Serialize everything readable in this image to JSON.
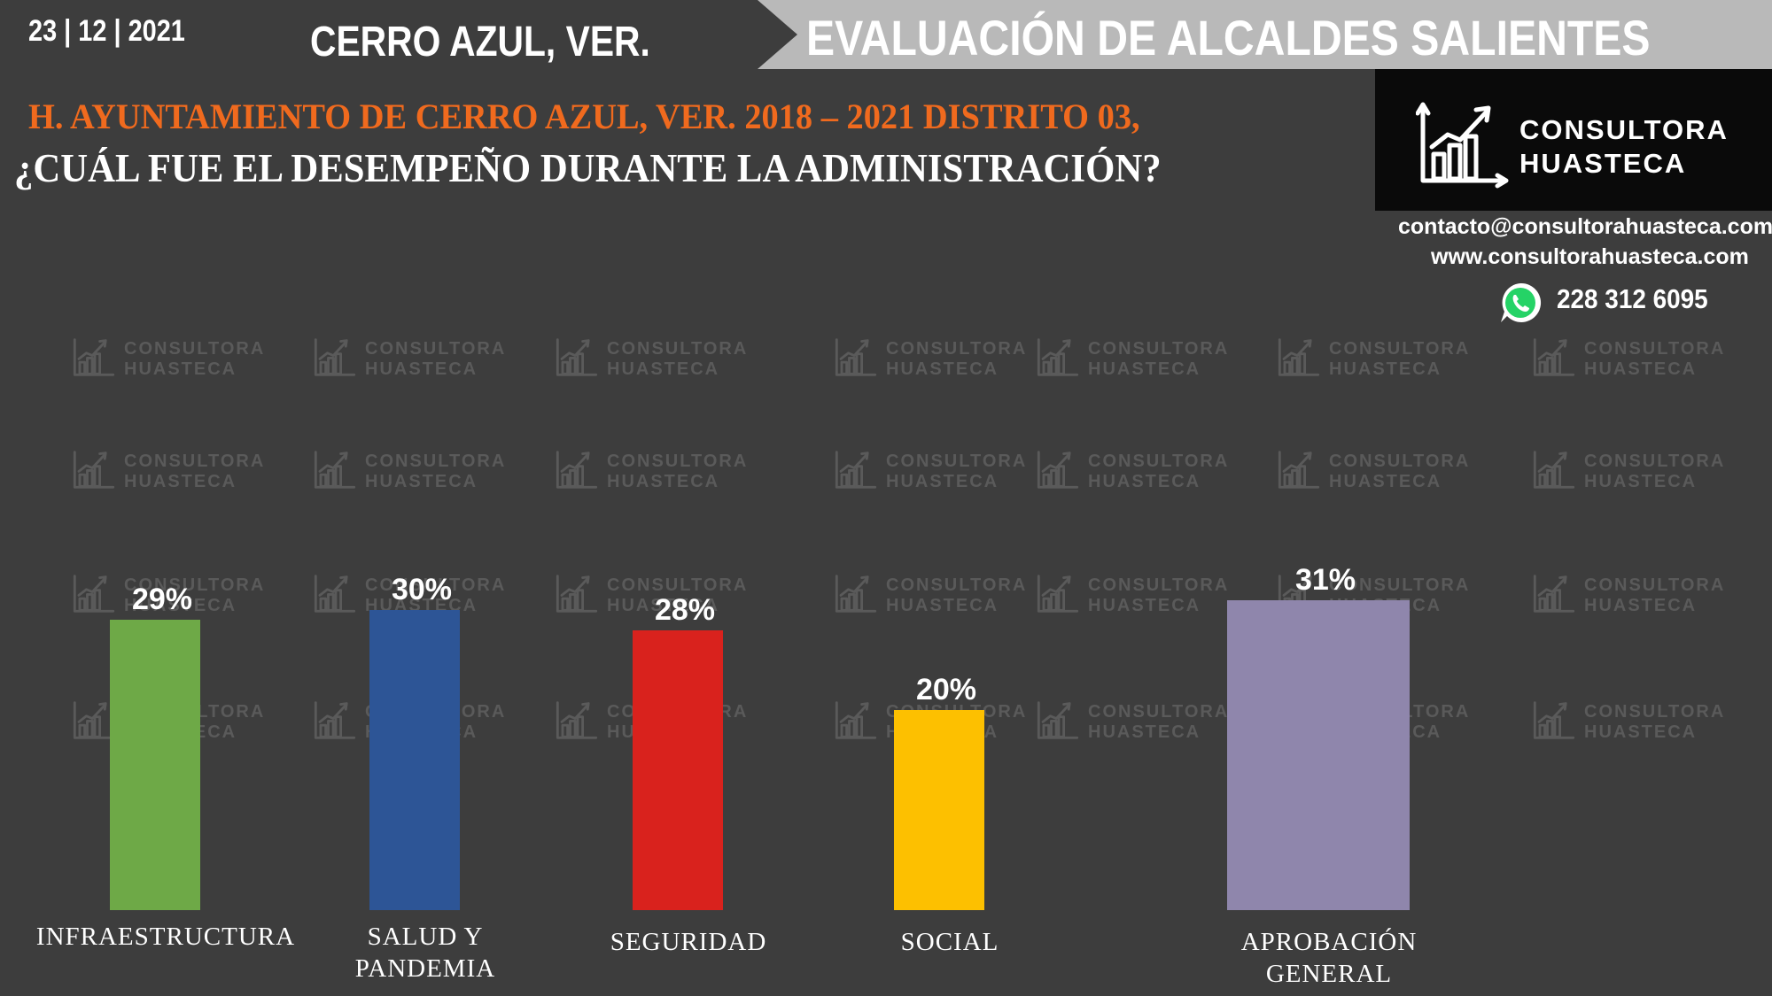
{
  "header": {
    "date": "23 | 12 | 2021",
    "city": "CERRO AZUL, VER.",
    "banner": "EVALUACIÓN DE ALCALDES SALIENTES"
  },
  "subtitle": "H. AYUNTAMIENTO DE CERRO AZUL, VER. 2018 – 2021 DISTRITO 03,",
  "question": "¿CUÁL FUE EL DESEMPEÑO DURANTE LA ADMINISTRACIÓN?",
  "logo": {
    "line1": "CONSULTORA",
    "line2": "HUASTECA"
  },
  "contact": {
    "email": "contacto@consultorahuasteca.com",
    "web": "www.consultorahuasteca.com",
    "phone": "228 312 6095"
  },
  "watermark": {
    "line1": "CONSULTORA",
    "line2": "HUASTECA"
  },
  "colors": {
    "background": "#3d3d3d",
    "accent_orange": "#f06a1e",
    "banner_gray": "#b9b9b9"
  },
  "chart_data": {
    "type": "bar",
    "title": "",
    "xlabel": "",
    "ylabel": "",
    "ylim": [
      0,
      33
    ],
    "categories": [
      "INFRAESTRUCTURA",
      "SALUD Y PANDEMIA",
      "SEGURIDAD",
      "SOCIAL",
      "APROBACIÓN GENERAL"
    ],
    "category_lines": [
      [
        "INFRAESTRUCTURA"
      ],
      [
        "SALUD Y",
        "PANDEMIA"
      ],
      [
        "SEGURIDAD"
      ],
      [
        "SOCIAL"
      ],
      [
        "APROBACIÓN",
        "GENERAL"
      ]
    ],
    "values": [
      29,
      30,
      28,
      20,
      31
    ],
    "value_labels": [
      "29%",
      "30%",
      "28%",
      "20%",
      "31%"
    ],
    "bar_colors": [
      "#6ea947",
      "#2d5596",
      "#d9221d",
      "#fdc000",
      "#8f86ac"
    ],
    "grid": false,
    "legend": "none"
  }
}
